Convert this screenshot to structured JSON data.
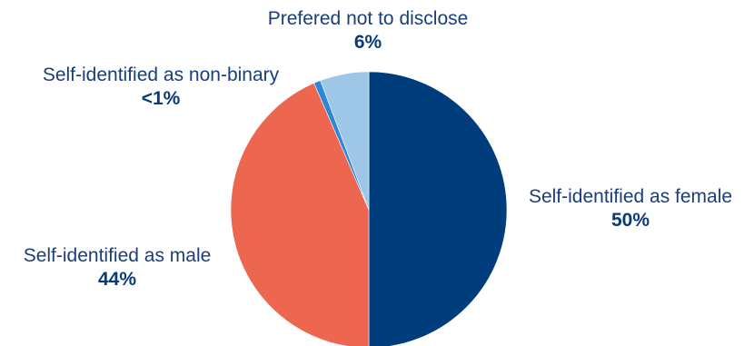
{
  "chart_data": {
    "type": "pie",
    "title": "",
    "start_angle_deg": 0,
    "direction": "clockwise",
    "slices": [
      {
        "label": "Self-identified as female",
        "value": 50,
        "display": "50%",
        "color": "#003d7d"
      },
      {
        "label": "Self-identified as male",
        "value": 43.5,
        "display": "44%",
        "color": "#ec6650"
      },
      {
        "label": "Self-identified as non-binary",
        "value": 0.8,
        "display": "<1%",
        "color": "#2e86d8"
      },
      {
        "label": "Prefered not to disclose",
        "value": 5.7,
        "display": "6%",
        "color": "#9ec6e6"
      }
    ]
  }
}
